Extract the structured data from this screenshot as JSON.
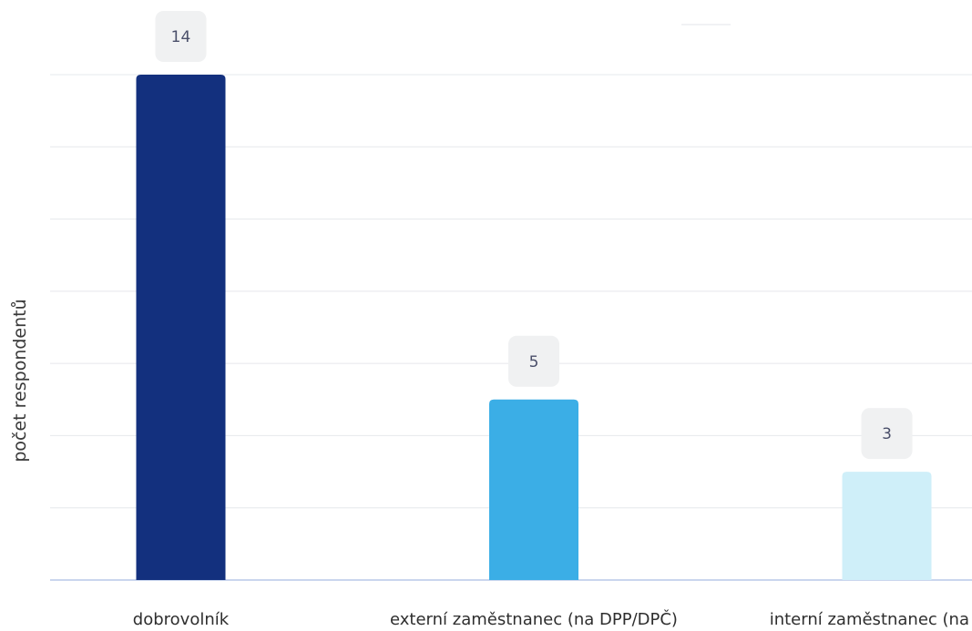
{
  "chart_data": {
    "type": "bar",
    "categories": [
      "dobrovolník",
      "externí zaměstnanec (na DPP/DPČ)",
      "interní zaměstnanec (na"
    ],
    "values": [
      14,
      5,
      3
    ],
    "ylabel": "počet respondentů",
    "xlabel": "",
    "ylim": [
      0,
      14
    ],
    "grid": true,
    "data_labels": [
      "14",
      "5",
      "3"
    ],
    "colors": [
      "#13307e",
      "#3baee6",
      "#cfeff9"
    ],
    "label_badge_color": "#f0f1f2",
    "label_text_color": "#4a4f6a",
    "gridline_color": "#e6e8ec",
    "baseline_color": "#b8c8e8"
  }
}
